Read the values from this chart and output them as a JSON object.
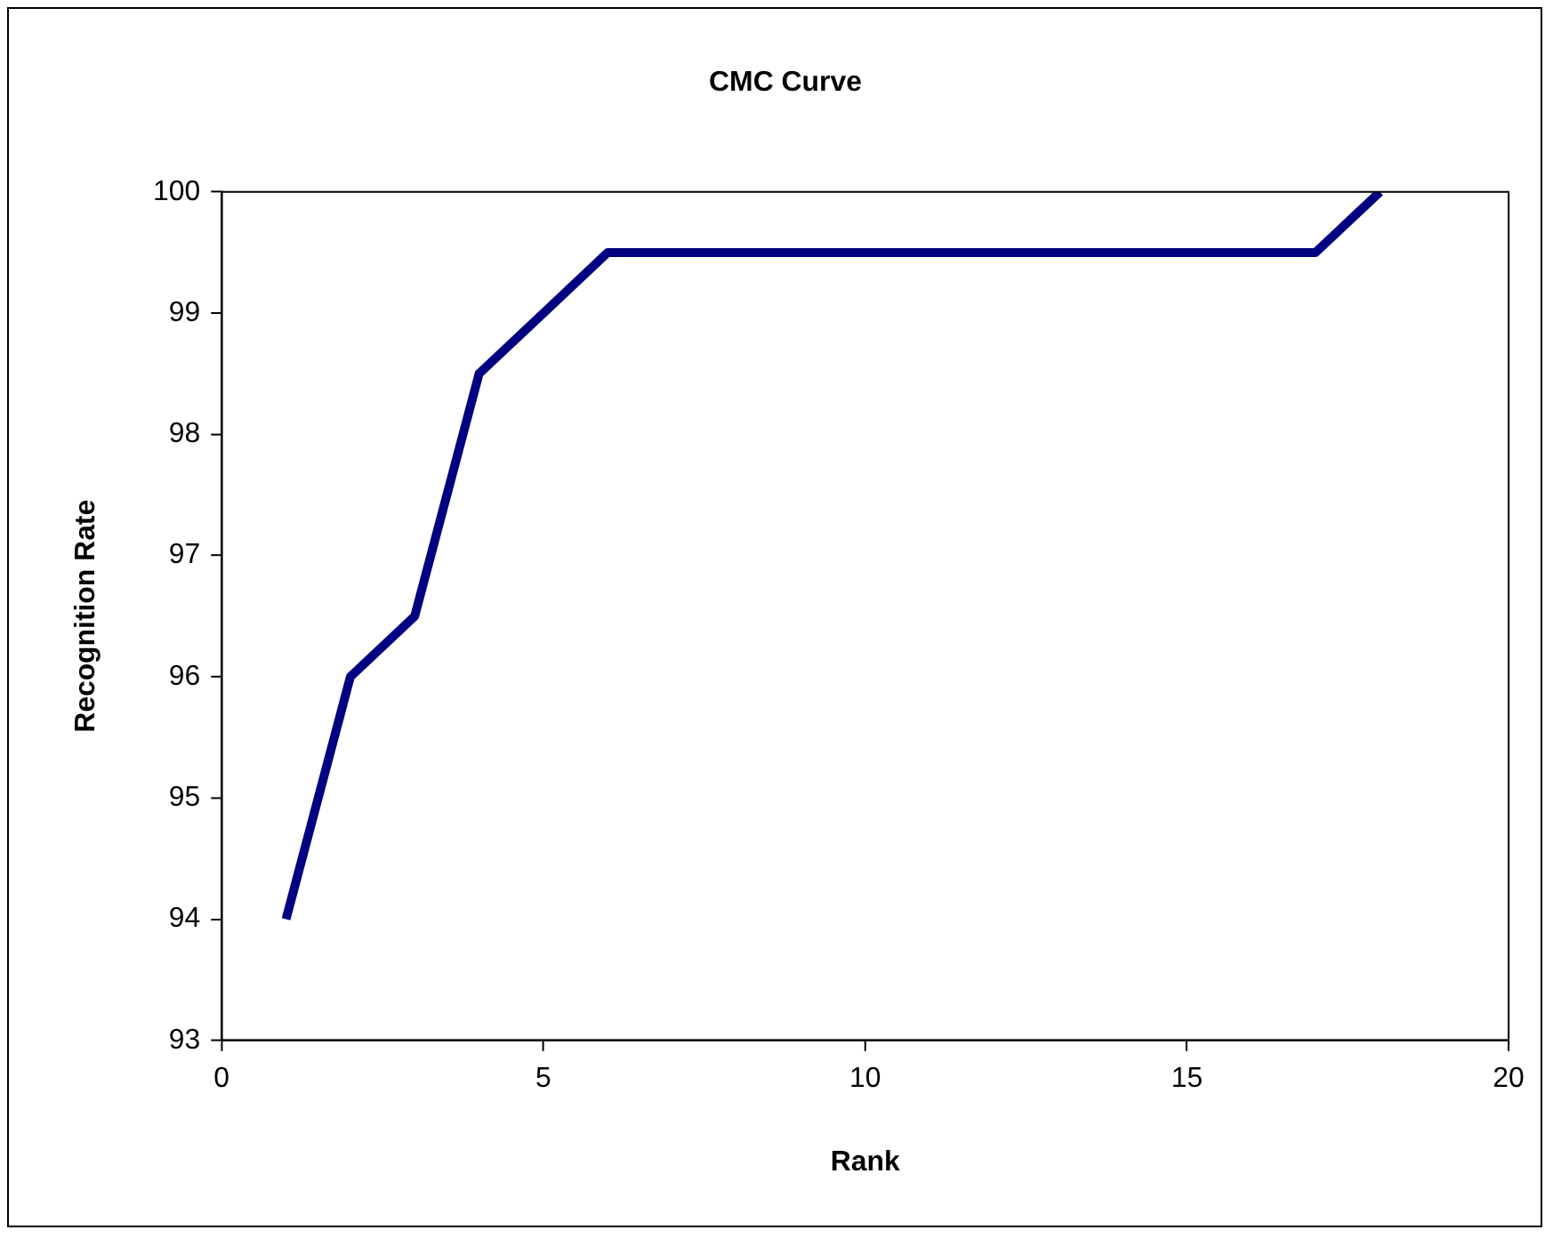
{
  "chart_data": {
    "type": "line",
    "title": "CMC Curve",
    "xlabel": "Rank",
    "ylabel": "Recognition Rate",
    "x": [
      1,
      2,
      3,
      4,
      5,
      6,
      7,
      8,
      9,
      10,
      11,
      12,
      13,
      14,
      15,
      16,
      17,
      18
    ],
    "series": [
      {
        "color": "#000080",
        "values": [
          94,
          96,
          96.5,
          98.5,
          99,
          99.5,
          99.5,
          99.5,
          99.5,
          99.5,
          99.5,
          99.5,
          99.5,
          99.5,
          99.5,
          99.5,
          99.5,
          100
        ]
      }
    ],
    "xlim": [
      0,
      20
    ],
    "xticks": [
      0,
      5,
      10,
      15,
      20
    ],
    "ylim": [
      93,
      100
    ],
    "yticks": [
      93,
      94,
      95,
      96,
      97,
      98,
      99,
      100
    ],
    "grid": false,
    "legend": false,
    "marker": "none",
    "line_style": "solid"
  }
}
